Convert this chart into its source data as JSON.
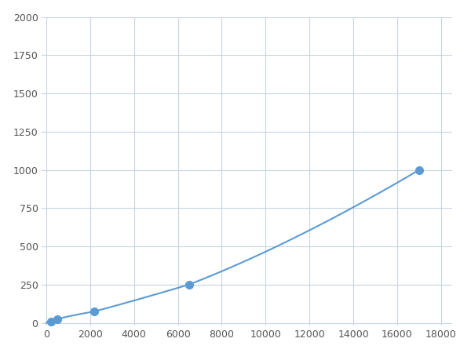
{
  "x": [
    0,
    200,
    500,
    2200,
    6500,
    17000
  ],
  "y": [
    0,
    10,
    25,
    75,
    250,
    1000
  ],
  "marker_x": [
    200,
    500,
    2200,
    6500,
    17000
  ],
  "marker_y": [
    10,
    25,
    75,
    250,
    1000
  ],
  "line_color": "#5b9bd5",
  "marker_color": "#5b9bd5",
  "marker_size": 7,
  "xlim": [
    -200,
    18500
  ],
  "ylim": [
    -20,
    2000
  ],
  "xticks": [
    0,
    2000,
    4000,
    6000,
    8000,
    10000,
    12000,
    14000,
    16000,
    18000
  ],
  "yticks": [
    0,
    250,
    500,
    750,
    1000,
    1250,
    1500,
    1750,
    2000
  ],
  "grid_color": "#c8d4e3",
  "plot_bg": "#ffffff",
  "figure_bg": "#ffffff",
  "tick_fontsize": 9,
  "tick_color": "#555555"
}
